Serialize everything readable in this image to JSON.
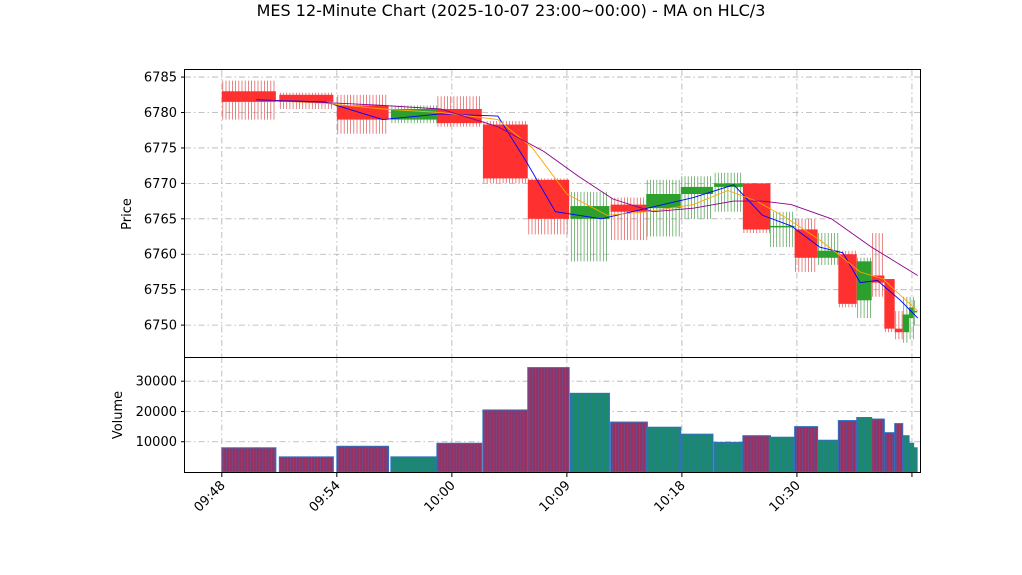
{
  "chart_data": {
    "type": "candlestick",
    "title": "MES 12-Minute Chart (2025-10-07 23:00~00:00) - MA on HLC/3",
    "price_panel": {
      "ylabel": "Price",
      "ylim": [
        6745.5,
        6786
      ],
      "yticks": [
        6750,
        6755,
        6760,
        6765,
        6770,
        6775,
        6780,
        6785
      ],
      "grid": true
    },
    "volume_panel": {
      "ylabel": "Volume",
      "ylim": [
        0,
        38000
      ],
      "yticks": [
        10000,
        20000,
        30000
      ],
      "grid": true
    },
    "x_axis": {
      "xlim": [
        -3.2,
        60.7
      ],
      "tick_positions": [
        0,
        10,
        20,
        30,
        40,
        50,
        60
      ],
      "tick_labels": [
        "09:48",
        "09:54",
        "10:00",
        "10:09",
        "10:18",
        "10:30",
        ""
      ]
    },
    "bars": [
      {
        "x": 0,
        "w": 4.7,
        "open": 6783.0,
        "close": 6781.5,
        "high": 6784.5,
        "low": 6779.0,
        "volume": 8000
      },
      {
        "x": 5,
        "w": 4.7,
        "open": 6782.5,
        "close": 6781.5,
        "high": 6782.8,
        "low": 6780.5,
        "volume": 5000
      },
      {
        "x": 10,
        "w": 4.5,
        "open": 6781.0,
        "close": 6779.0,
        "high": 6782.5,
        "low": 6777.0,
        "volume": 8500
      },
      {
        "x": 14.7,
        "w": 4.0,
        "open": 6779.0,
        "close": 6780.5,
        "high": 6781.0,
        "low": 6778.5,
        "volume": 5000
      },
      {
        "x": 18.7,
        "w": 3.9,
        "open": 6780.5,
        "close": 6778.5,
        "high": 6782.3,
        "low": 6778.0,
        "volume": 9500
      },
      {
        "x": 22.7,
        "w": 3.9,
        "open": 6778.3,
        "close": 6770.7,
        "high": 6778.8,
        "low": 6770.0,
        "volume": 20500
      },
      {
        "x": 26.6,
        "w": 3.6,
        "open": 6770.5,
        "close": 6765.0,
        "high": 6770.7,
        "low": 6762.8,
        "volume": 34500
      },
      {
        "x": 30.3,
        "w": 3.4,
        "open": 6765.0,
        "close": 6766.8,
        "high": 6768.8,
        "low": 6759.0,
        "volume": 26000
      },
      {
        "x": 33.8,
        "w": 3.2,
        "open": 6767.0,
        "close": 6766.0,
        "high": 6768.0,
        "low": 6762.0,
        "volume": 16500
      },
      {
        "x": 36.9,
        "w": 3.0,
        "open": 6766.5,
        "close": 6768.5,
        "high": 6770.5,
        "low": 6762.5,
        "volume": 14800
      },
      {
        "x": 39.9,
        "w": 2.8,
        "open": 6768.5,
        "close": 6769.5,
        "high": 6771.0,
        "low": 6765.0,
        "volume": 12500
      },
      {
        "x": 42.8,
        "w": 2.5,
        "open": 6769.5,
        "close": 6770.0,
        "high": 6771.5,
        "low": 6766.0,
        "volume": 9800
      },
      {
        "x": 45.3,
        "w": 2.4,
        "open": 6770.0,
        "close": 6763.5,
        "high": 6770.0,
        "low": 6763.0,
        "volume": 12000
      },
      {
        "x": 47.6,
        "w": 2.2,
        "open": 6764.0,
        "close": 6764.0,
        "high": 6766.0,
        "low": 6761.0,
        "volume": 11500
      },
      {
        "x": 49.8,
        "w": 2.0,
        "open": 6763.5,
        "close": 6759.5,
        "high": 6765.0,
        "low": 6757.5,
        "volume": 15000
      },
      {
        "x": 51.8,
        "w": 1.8,
        "open": 6759.5,
        "close": 6760.5,
        "high": 6763.0,
        "low": 6758.5,
        "volume": 10500
      },
      {
        "x": 53.6,
        "w": 1.6,
        "open": 6760.0,
        "close": 6753.0,
        "high": 6760.5,
        "low": 6752.5,
        "volume": 17000
      },
      {
        "x": 55.2,
        "w": 1.3,
        "open": 6753.5,
        "close": 6759.0,
        "high": 6759.5,
        "low": 6751.0,
        "volume": 18000
      },
      {
        "x": 56.5,
        "w": 1.1,
        "open": 6757.0,
        "close": 6756.0,
        "high": 6763.0,
        "low": 6754.0,
        "volume": 17500
      },
      {
        "x": 57.6,
        "w": 0.9,
        "open": 6756.5,
        "close": 6749.5,
        "high": 6756.5,
        "low": 6749.0,
        "volume": 13000
      },
      {
        "x": 58.5,
        "w": 0.7,
        "open": 6749.5,
        "close": 6749.0,
        "high": 6752.0,
        "low": 6748.0,
        "volume": 16000
      },
      {
        "x": 59.2,
        "w": 0.55,
        "open": 6749.0,
        "close": 6751.5,
        "high": 6754.0,
        "low": 6747.5,
        "volume": 12000
      },
      {
        "x": 59.75,
        "w": 0.4,
        "open": 6751.0,
        "close": 6752.5,
        "high": 6754.0,
        "low": 6748.0,
        "volume": 9500
      },
      {
        "x": 60.15,
        "w": 0.3,
        "open": 6752.0,
        "close": 6752.0,
        "high": 6753.5,
        "low": 6750.0,
        "volume": 8000
      }
    ],
    "ma_series": [
      {
        "name": "",
        "color": "#0000ff",
        "x": [
          3,
          9,
          14,
          19,
          24,
          26.5,
          29,
          33,
          37,
          41,
          44.5,
          47,
          49.5,
          52,
          54,
          55.5,
          57,
          59,
          60.5
        ],
        "y": [
          6781.8,
          6781.5,
          6779.0,
          6779.8,
          6779.5,
          6773.0,
          6766.0,
          6765.0,
          6766.5,
          6768.0,
          6769.8,
          6765.5,
          6764.0,
          6761.0,
          6760.2,
          6756.0,
          6756.3,
          6753.5,
          6751.0
        ]
      },
      {
        "name": "",
        "color": "#ffa500",
        "x": [
          4,
          9,
          14,
          19,
          24,
          27,
          30,
          33.5,
          37,
          41,
          44,
          46.5,
          49,
          52,
          54,
          55.5,
          57.5,
          59,
          60.5
        ],
        "y": [
          6781.7,
          6781.3,
          6780.5,
          6780.0,
          6779.0,
          6775.0,
          6768.5,
          6765.5,
          6766.0,
          6767.0,
          6769.0,
          6767.5,
          6765.2,
          6762.0,
          6759.5,
          6757.5,
          6756.5,
          6754.2,
          6752.0
        ]
      },
      {
        "name": "",
        "color": "#8b008b",
        "x": [
          4,
          9,
          14,
          19,
          24,
          28,
          31,
          34,
          37.5,
          41,
          44.5,
          47,
          49.5,
          53,
          56.5,
          60.5
        ],
        "y": [
          6781.7,
          6781.4,
          6781.0,
          6780.5,
          6778.0,
          6774.5,
          6771.0,
          6767.8,
          6766.0,
          6766.5,
          6767.5,
          6767.5,
          6767.0,
          6765.0,
          6761.0,
          6757.0
        ]
      }
    ],
    "colors": {
      "up_body": "#2ca02c",
      "down_body": "#ff3030",
      "up_wick": "#4a9a4a",
      "down_wick": "#e05050",
      "volume_up": "#1a8a6a",
      "volume_down": "#9a3060",
      "volume_edge": "#3070c0"
    }
  }
}
